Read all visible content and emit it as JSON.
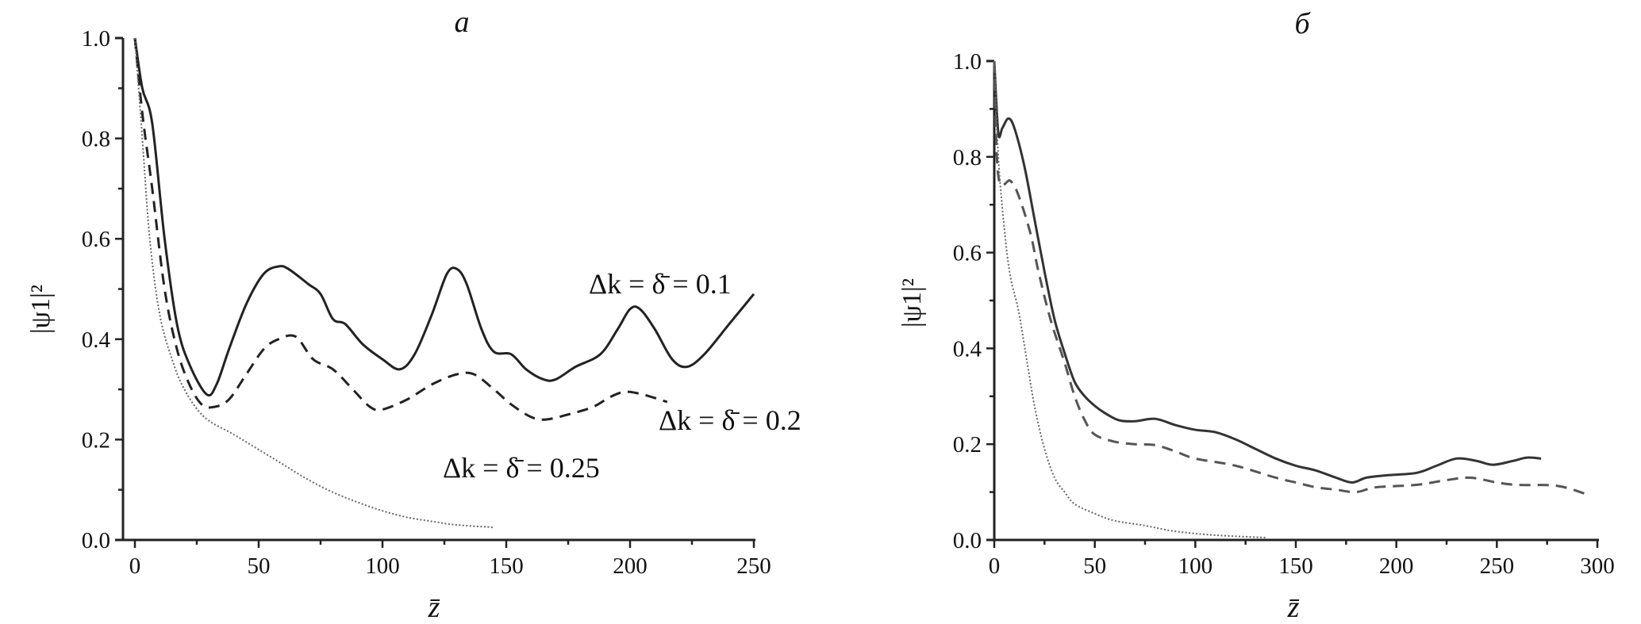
{
  "chart_data": [
    {
      "type": "line",
      "title": "a",
      "xlabel": "z̄",
      "ylabel": "|ψ1|²",
      "xlim": [
        0,
        250
      ],
      "ylim": [
        0,
        1.0
      ],
      "xticks": [
        "0",
        "50",
        "100",
        "150",
        "200",
        "250"
      ],
      "yticks": [
        "0.0",
        "0.2",
        "0.4",
        "0.6",
        "0.8",
        "1.0"
      ],
      "grid": false,
      "series": [
        {
          "name": "Δk = δ̄ = 0.1",
          "style": "solid",
          "x": [
            0,
            3,
            7,
            12,
            17,
            22,
            29,
            33,
            38,
            45,
            52,
            58,
            62,
            70,
            75,
            80,
            85,
            92,
            100,
            107,
            113,
            120,
            126,
            130,
            134,
            140,
            145,
            152,
            158,
            165,
            170,
            178,
            188,
            195,
            200,
            204,
            210,
            217,
            223,
            230,
            240,
            250
          ],
          "y": [
            1.0,
            0.9,
            0.83,
            0.6,
            0.43,
            0.35,
            0.29,
            0.31,
            0.38,
            0.47,
            0.53,
            0.545,
            0.54,
            0.51,
            0.49,
            0.44,
            0.43,
            0.39,
            0.36,
            0.34,
            0.37,
            0.45,
            0.53,
            0.54,
            0.51,
            0.42,
            0.375,
            0.37,
            0.34,
            0.32,
            0.32,
            0.345,
            0.37,
            0.42,
            0.46,
            0.46,
            0.42,
            0.36,
            0.345,
            0.37,
            0.43,
            0.49
          ]
        },
        {
          "name": "Δk = δ̄ = 0.2",
          "style": "dashed",
          "x": [
            0,
            3,
            7,
            12,
            17,
            22,
            27,
            32,
            38,
            45,
            52,
            58,
            65,
            72,
            80,
            88,
            95,
            100,
            110,
            120,
            130,
            137,
            145,
            152,
            160,
            166,
            175,
            185,
            192,
            198,
            205,
            215
          ],
          "y": [
            1.0,
            0.85,
            0.7,
            0.5,
            0.38,
            0.31,
            0.27,
            0.265,
            0.28,
            0.33,
            0.38,
            0.4,
            0.405,
            0.36,
            0.34,
            0.3,
            0.265,
            0.26,
            0.28,
            0.31,
            0.33,
            0.33,
            0.3,
            0.27,
            0.245,
            0.24,
            0.25,
            0.265,
            0.285,
            0.295,
            0.29,
            0.275
          ]
        },
        {
          "name": "Δk = δ̄ = 0.25",
          "style": "dotted",
          "x": [
            0,
            3,
            6,
            10,
            15,
            20,
            28,
            40,
            50,
            60,
            70,
            80,
            90,
            100,
            110,
            120,
            130,
            145
          ],
          "y": [
            1.0,
            0.8,
            0.6,
            0.45,
            0.36,
            0.3,
            0.245,
            0.21,
            0.18,
            0.15,
            0.12,
            0.095,
            0.075,
            0.058,
            0.045,
            0.037,
            0.03,
            0.025
          ]
        }
      ]
    },
    {
      "type": "line",
      "title": "б",
      "xlabel": "z̄",
      "ylabel": "|ψ1|²",
      "xlim": [
        0,
        300
      ],
      "ylim": [
        0,
        1.0
      ],
      "xticks": [
        "0",
        "50",
        "100",
        "150",
        "200",
        "250",
        "300"
      ],
      "yticks": [
        "0.0",
        "0.2",
        "0.4",
        "0.6",
        "0.8",
        "1.0"
      ],
      "grid": false,
      "series": [
        {
          "style": "solid",
          "x": [
            0,
            2,
            4,
            7,
            10,
            15,
            20,
            25,
            30,
            35,
            40,
            45,
            50,
            55,
            62,
            70,
            80,
            90,
            100,
            110,
            120,
            130,
            140,
            150,
            160,
            170,
            178,
            185,
            195,
            210,
            220,
            230,
            240,
            248,
            258,
            265,
            272
          ],
          "y": [
            1.0,
            0.85,
            0.86,
            0.88,
            0.86,
            0.78,
            0.67,
            0.56,
            0.46,
            0.39,
            0.33,
            0.3,
            0.28,
            0.265,
            0.25,
            0.248,
            0.253,
            0.24,
            0.23,
            0.225,
            0.21,
            0.19,
            0.17,
            0.155,
            0.145,
            0.13,
            0.12,
            0.13,
            0.135,
            0.14,
            0.155,
            0.17,
            0.165,
            0.157,
            0.165,
            0.172,
            0.17
          ]
        },
        {
          "style": "dashed",
          "x": [
            0,
            2,
            8,
            12,
            18,
            22,
            28,
            35,
            40,
            45,
            50,
            60,
            70,
            80,
            90,
            100,
            120,
            140,
            150,
            160,
            170,
            180,
            190,
            210,
            225,
            237,
            250,
            260,
            280,
            295
          ],
          "y": [
            1.0,
            0.76,
            0.75,
            0.72,
            0.64,
            0.56,
            0.46,
            0.37,
            0.3,
            0.25,
            0.22,
            0.205,
            0.2,
            0.198,
            0.185,
            0.17,
            0.155,
            0.13,
            0.12,
            0.11,
            0.105,
            0.1,
            0.11,
            0.115,
            0.125,
            0.13,
            0.12,
            0.115,
            0.113,
            0.095
          ]
        },
        {
          "style": "dotted",
          "x": [
            0,
            2,
            5,
            8,
            12,
            16,
            20,
            25,
            30,
            35,
            40,
            50,
            60,
            75,
            90,
            110,
            135
          ],
          "y": [
            1.0,
            0.8,
            0.65,
            0.55,
            0.48,
            0.38,
            0.28,
            0.19,
            0.13,
            0.1,
            0.075,
            0.055,
            0.04,
            0.03,
            0.018,
            0.01,
            0.005
          ]
        }
      ]
    }
  ]
}
